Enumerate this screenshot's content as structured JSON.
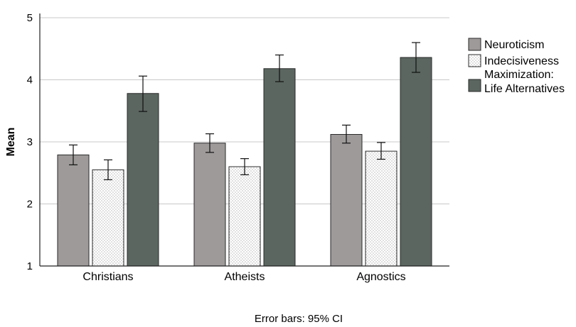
{
  "chart_data": {
    "type": "bar",
    "title": "",
    "xlabel": "",
    "ylabel": "Mean",
    "ylim": [
      1,
      5
    ],
    "yticks": [
      "1",
      "2",
      "3",
      "4",
      "5"
    ],
    "grid": "horizontal",
    "legend_position": "right",
    "categories": [
      "Christians",
      "Atheists",
      "Agnostics"
    ],
    "series": [
      {
        "name": "Neuroticism",
        "pattern": "solid",
        "color": "#9e9a9a",
        "values": [
          2.79,
          2.98,
          3.12
        ],
        "ci_low": [
          2.63,
          2.83,
          2.98
        ],
        "ci_high": [
          2.95,
          3.13,
          3.27
        ]
      },
      {
        "name": "Indecisiveness",
        "pattern": "dotted",
        "color": "#ffffff",
        "values": [
          2.55,
          2.6,
          2.85
        ],
        "ci_low": [
          2.39,
          2.47,
          2.72
        ],
        "ci_high": [
          2.71,
          2.73,
          2.99
        ]
      },
      {
        "name": "Maximization: Life Alternatives",
        "legend_lines": [
          "Maximization:",
          "Life Alternatives"
        ],
        "pattern": "solid",
        "color": "#5b6660",
        "values": [
          3.78,
          4.18,
          4.36
        ],
        "ci_low": [
          3.49,
          3.97,
          4.12
        ],
        "ci_high": [
          4.06,
          4.4,
          4.6
        ]
      }
    ],
    "footnote": "Error bars: 95% CI"
  }
}
